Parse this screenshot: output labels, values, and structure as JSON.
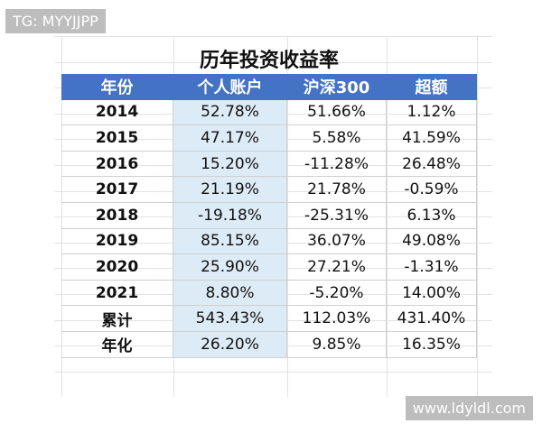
{
  "watermark_top": "TG: MYYJJPP",
  "watermark_bottom": "www.ldyldl.com",
  "table": {
    "title": "历年投资收益率",
    "header": [
      "年份",
      "个人账户",
      "沪深300",
      "超额"
    ],
    "rows": [
      [
        "2014",
        "52.78%",
        "51.66%",
        "1.12%"
      ],
      [
        "2015",
        "47.17%",
        "5.58%",
        "41.59%"
      ],
      [
        "2016",
        "15.20%",
        "-11.28%",
        "26.48%"
      ],
      [
        "2017",
        "21.19%",
        "21.78%",
        "-0.59%"
      ],
      [
        "2018",
        "-19.18%",
        "-25.31%",
        "6.13%"
      ],
      [
        "2019",
        "85.15%",
        "36.07%",
        "49.08%"
      ],
      [
        "2020",
        "25.90%",
        "27.21%",
        "-1.31%"
      ],
      [
        "2021",
        "8.80%",
        "-5.20%",
        "14.00%"
      ],
      [
        "累计",
        "543.43%",
        "112.03%",
        "431.40%"
      ],
      [
        "年化",
        "26.20%",
        "9.85%",
        "16.35%"
      ]
    ]
  }
}
